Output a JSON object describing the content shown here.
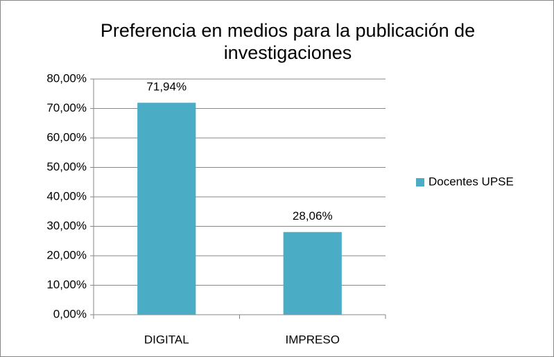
{
  "chart_data": {
    "type": "bar",
    "title": "Preferencia en medios para la publicación de investigaciones",
    "categories": [
      "DIGITAL",
      "IMPRESO"
    ],
    "series": [
      {
        "name": "Docentes UPSE",
        "color": "#4bacc6",
        "values": [
          71.94,
          28.06
        ],
        "value_labels": [
          "71,94%",
          "28,06%"
        ]
      }
    ],
    "ylim": [
      0,
      80
    ],
    "yticks": [
      {
        "value": 0,
        "label": "0,00%"
      },
      {
        "value": 10,
        "label": "10,00%"
      },
      {
        "value": 20,
        "label": "20,00%"
      },
      {
        "value": 30,
        "label": "30,00%"
      },
      {
        "value": 40,
        "label": "40,00%"
      },
      {
        "value": 50,
        "label": "50,00%"
      },
      {
        "value": 60,
        "label": "60,00%"
      },
      {
        "value": 70,
        "label": "70,00%"
      },
      {
        "value": 80,
        "label": "80,00%"
      }
    ],
    "grid": true,
    "legend": "right"
  }
}
